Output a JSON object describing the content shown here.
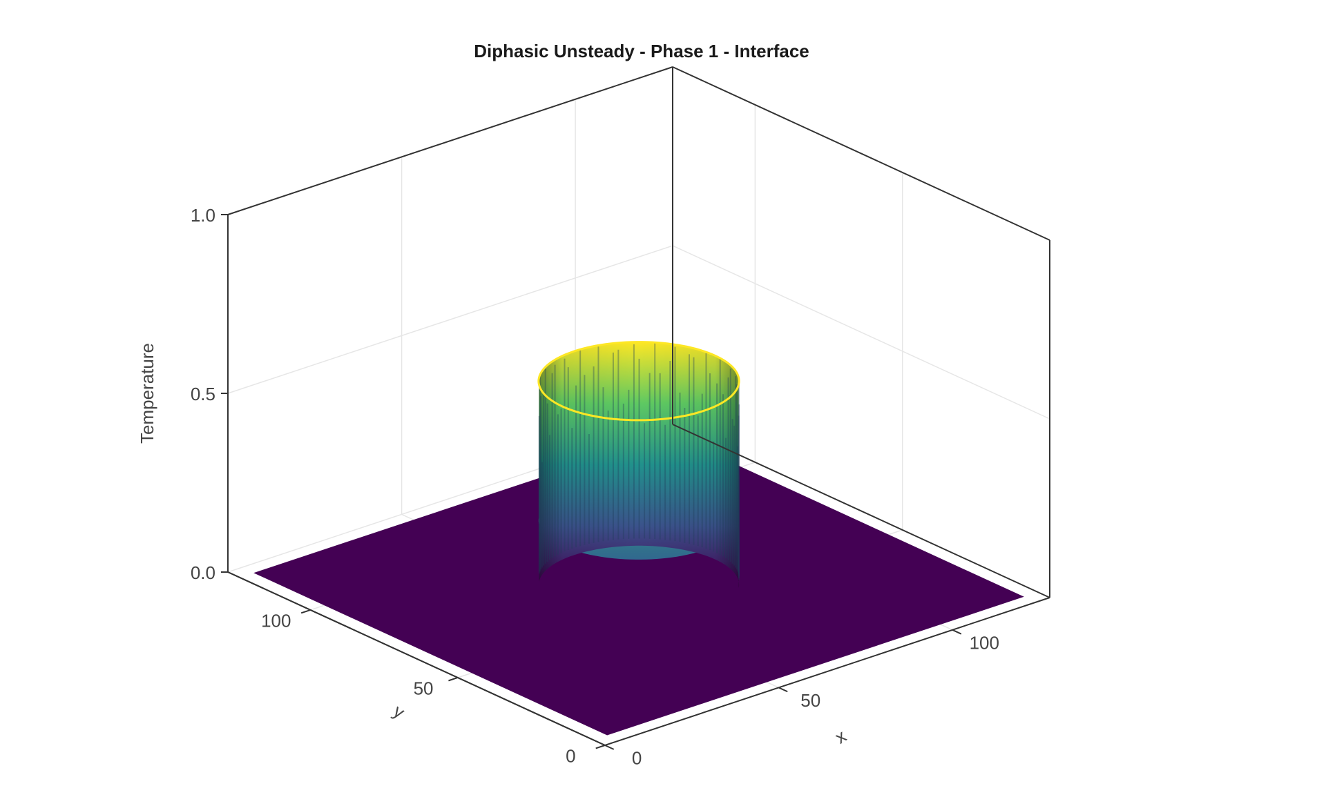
{
  "chart_data": {
    "type": "surface",
    "title": "Diphasic Unsteady - Phase 1 - Interface",
    "xlabel": "x",
    "ylabel": "y",
    "zlabel": "Temperature",
    "xlim": [
      0,
      128
    ],
    "ylim": [
      0,
      128
    ],
    "zlim": [
      0,
      1
    ],
    "x_ticks": [
      "0",
      "50",
      "100"
    ],
    "x_tick_values": [
      0,
      50,
      100
    ],
    "y_ticks": [
      "0",
      "50",
      "100"
    ],
    "y_tick_values": [
      0,
      50,
      100
    ],
    "z_ticks": [
      "0.0",
      "0.5",
      "1.0"
    ],
    "z_tick_values": [
      0,
      0.5,
      1
    ],
    "grid": true,
    "colormap": "viridis",
    "surface": {
      "domain_x": [
        4,
        124
      ],
      "domain_y": [
        4,
        124
      ],
      "background_value": 0.0,
      "interface_ring": {
        "center_x": 64,
        "center_y": 64,
        "radius": 22,
        "min_value": 0.0,
        "max_value": 0.57
      }
    }
  },
  "colors": {
    "colormap_low": "#440154",
    "colormap_mid": "#21918c",
    "colormap_high": "#fde725",
    "axis_line": "#333333",
    "grid_line": "#e6e6e6"
  }
}
